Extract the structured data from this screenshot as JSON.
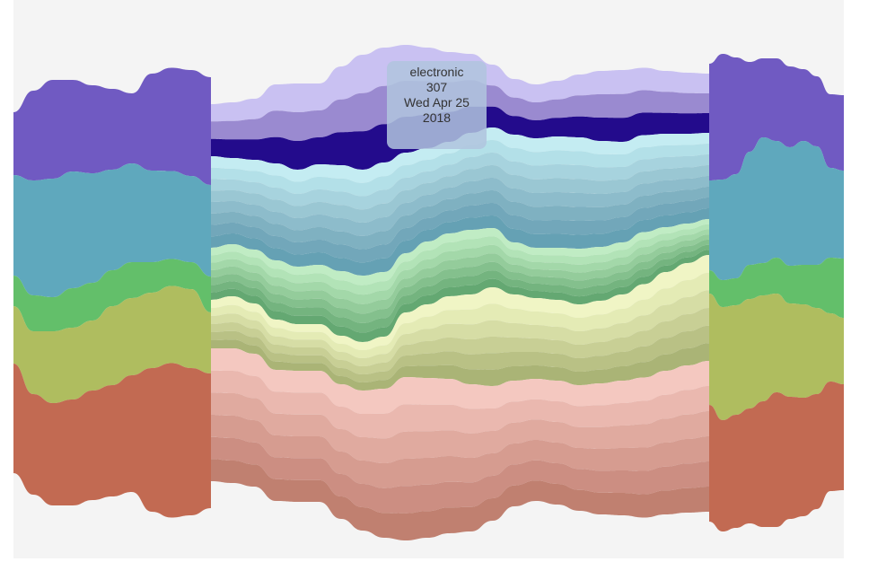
{
  "tooltip": {
    "series": "electronic",
    "value": "307",
    "date": "Wed Apr 25",
    "year": "2018"
  },
  "chart_data": {
    "type": "area",
    "subtype": "streamgraph",
    "focus_date": "2018-04-25",
    "focus_series": "electronic",
    "focus_value": 307,
    "groups": [
      {
        "name": "",
        "color": "#705ac2",
        "zoom_shades": [
          "#c9c1f2",
          "#9a8ad0",
          "#230b8c"
        ],
        "context_left": [
          70,
          100,
          110,
          102,
          98,
          90,
          78,
          108,
          115,
          118,
          120
        ],
        "focus": [
          58,
          62,
          68,
          88,
          96,
          90,
          110,
          128,
          128,
          120,
          112,
          100,
          88,
          70,
          62,
          60,
          62,
          70,
          78,
          80,
          75,
          70,
          68,
          66
        ],
        "context_right": [
          130,
          140,
          130,
          100,
          88,
          92,
          90,
          80,
          78,
          82,
          84
        ]
      },
      {
        "name": "",
        "color": "#5fa8bd",
        "zoom_shades": [
          "#c4ecf2",
          "#b3e0e8",
          "#a7d3de",
          "#9ac7d3",
          "#8dbccb",
          "#7fb1c1",
          "#72a7ba",
          "#65a1b4"
        ],
        "context_left": [
          112,
          128,
          132,
          130,
          122,
          112,
          110,
          102,
          98,
          96,
          102
        ],
        "focus": [
          102,
          96,
          100,
          108,
          108,
          112,
          118,
          118,
          122,
          112,
          104,
          102,
          108,
          112,
          120,
          122,
          124,
          124,
          118,
          112,
          108,
          104,
          100,
          96
        ],
        "context_right": [
          100,
          112,
          116,
          126,
          140,
          130,
          132,
          138,
          132,
          100,
          98
        ]
      },
      {
        "name": "",
        "color": "#63bf6a",
        "zoom_shades": [
          "#c0ecc4",
          "#b2e3b7",
          "#a3d8a9",
          "#94cc9b",
          "#84c08d",
          "#74b47f",
          "#64a872"
        ],
        "context_left": [
          34,
          40,
          38,
          44,
          42,
          40,
          40,
          34,
          30,
          30,
          40
        ],
        "focus": [
          58,
          58,
          60,
          66,
          64,
          66,
          72,
          74,
          72,
          66,
          70,
          70,
          72,
          66,
          58,
          56,
          58,
          62,
          60,
          58,
          58,
          50,
          44,
          40
        ],
        "context_right": [
          26,
          30,
          30,
          38,
          36,
          40,
          42,
          44,
          48,
          62,
          66
        ]
      },
      {
        "name": "",
        "color": "#afbd5f",
        "zoom_shades": [
          "#f0f5c5",
          "#e4ebb5",
          "#d6dda5",
          "#c8cf95",
          "#b9c185",
          "#aab476"
        ],
        "context_left": [
          64,
          70,
          80,
          80,
          78,
          88,
          86,
          84,
          86,
          88,
          68
        ],
        "focus": [
          54,
          58,
          56,
          56,
          52,
          52,
          54,
          54,
          58,
          72,
          82,
          92,
          100,
          110,
          96,
          90,
          90,
          90,
          92,
          96,
          104,
          110,
          114,
          118
        ],
        "context_right": [
          124,
          126,
          122,
          122,
          118,
          110,
          104,
          104,
          96,
          76,
          74
        ]
      },
      {
        "name": "",
        "color": "#c26a52",
        "zoom_shades": [
          "#f4c8c0",
          "#eab8af",
          "#e0aa9f",
          "#d69c90",
          "#cc8e82",
          "#c08070"
        ],
        "context_left": [
          122,
          112,
          114,
          118,
          122,
          124,
          130,
          160,
          172,
          164,
          150
        ],
        "focus": [
          148,
          150,
          148,
          146,
          146,
          146,
          150,
          156,
          166,
          182,
          178,
          172,
          164,
          150,
          140,
          136,
          138,
          140,
          146,
          150,
          156,
          160,
          164,
          168
        ],
        "context_right": [
          130,
          124,
          126,
          128,
          140,
          150,
          136,
          132,
          128,
          122,
          118
        ]
      }
    ]
  }
}
